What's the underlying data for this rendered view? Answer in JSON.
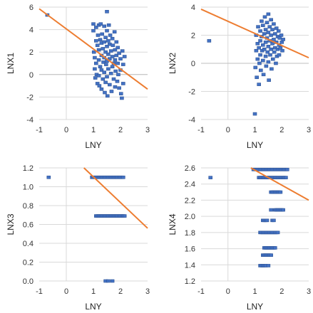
{
  "chart_data": [
    {
      "type": "scatter",
      "xlabel": "LNY",
      "ylabel": "LNX1",
      "xlim": [
        -1,
        3
      ],
      "ylim": [
        -4,
        6
      ],
      "xticks": [
        -1,
        0,
        1,
        2,
        3
      ],
      "yticks": [
        -4,
        -2,
        0,
        2,
        4,
        6
      ],
      "xtick_labels": [
        "-1",
        "0",
        "1",
        "2",
        "3"
      ],
      "ytick_labels": [
        "-4",
        "-2",
        "0",
        "2",
        "4",
        "6"
      ],
      "grid": true,
      "point_color": "#4472C4",
      "line_color": "#ED7D31",
      "points": [
        [
          -0.7,
          5.3
        ],
        [
          1.0,
          4.5
        ],
        [
          1.0,
          3.9
        ],
        [
          1.02,
          2.0
        ],
        [
          1.05,
          1.5
        ],
        [
          1.05,
          0.5
        ],
        [
          1.07,
          -0.3
        ],
        [
          1.1,
          4.2
        ],
        [
          1.1,
          3.0
        ],
        [
          1.1,
          1.0
        ],
        [
          1.12,
          0.0
        ],
        [
          1.15,
          -0.8
        ],
        [
          1.15,
          2.6
        ],
        [
          1.17,
          3.5
        ],
        [
          1.2,
          4.4
        ],
        [
          1.2,
          2.2
        ],
        [
          1.2,
          1.3
        ],
        [
          1.2,
          -0.1
        ],
        [
          1.22,
          -1.0
        ],
        [
          1.25,
          3.1
        ],
        [
          1.25,
          0.7
        ],
        [
          1.27,
          4.5
        ],
        [
          1.3,
          2.8
        ],
        [
          1.3,
          1.7
        ],
        [
          1.3,
          0.4
        ],
        [
          1.3,
          -1.3
        ],
        [
          1.32,
          3.6
        ],
        [
          1.35,
          2.3
        ],
        [
          1.35,
          -0.4
        ],
        [
          1.37,
          1.1
        ],
        [
          1.4,
          4.3
        ],
        [
          1.4,
          2.9
        ],
        [
          1.4,
          1.5
        ],
        [
          1.4,
          0.2
        ],
        [
          1.42,
          -1.6
        ],
        [
          1.45,
          3.3
        ],
        [
          1.45,
          2.0
        ],
        [
          1.45,
          -0.7
        ],
        [
          1.47,
          0.9
        ],
        [
          1.5,
          5.6
        ],
        [
          1.5,
          3.9
        ],
        [
          1.5,
          2.5
        ],
        [
          1.5,
          1.2
        ],
        [
          1.5,
          -0.2
        ],
        [
          1.52,
          -1.9
        ],
        [
          1.55,
          3.0
        ],
        [
          1.55,
          1.8
        ],
        [
          1.55,
          0.5
        ],
        [
          1.57,
          4.4
        ],
        [
          1.6,
          2.7
        ],
        [
          1.6,
          1.4
        ],
        [
          1.6,
          -0.9
        ],
        [
          1.62,
          3.5
        ],
        [
          1.65,
          2.1
        ],
        [
          1.65,
          0.1
        ],
        [
          1.67,
          -1.5
        ],
        [
          1.7,
          3.2
        ],
        [
          1.7,
          1.6
        ],
        [
          1.7,
          0.7
        ],
        [
          1.72,
          2.6
        ],
        [
          1.75,
          1.0
        ],
        [
          1.75,
          -0.4
        ],
        [
          1.78,
          3.8
        ],
        [
          1.8,
          2.2
        ],
        [
          1.8,
          1.3
        ],
        [
          1.8,
          -1.1
        ],
        [
          1.82,
          0.3
        ],
        [
          1.85,
          2.9
        ],
        [
          1.85,
          1.7
        ],
        [
          1.88,
          -0.6
        ],
        [
          1.9,
          2.4
        ],
        [
          1.9,
          1.0
        ],
        [
          1.92,
          0.0
        ],
        [
          1.95,
          1.9
        ],
        [
          1.95,
          -1.2
        ],
        [
          2.0,
          1.4
        ],
        [
          2.0,
          0.4
        ],
        [
          2.02,
          -1.7
        ],
        [
          2.05,
          -2.1
        ],
        [
          2.07,
          2.1
        ],
        [
          2.1,
          -0.8
        ],
        [
          2.1,
          0.9
        ],
        [
          2.15,
          1.6
        ]
      ],
      "trendline": [
        [
          -1,
          5.85
        ],
        [
          3,
          -1.3
        ]
      ]
    },
    {
      "type": "scatter",
      "xlabel": "LNY",
      "ylabel": "LNX2",
      "xlim": [
        -1,
        3
      ],
      "ylim": [
        -4,
        4
      ],
      "xticks": [
        -1,
        0,
        1,
        2,
        3
      ],
      "yticks": [
        -4,
        -2,
        0,
        2,
        4
      ],
      "xtick_labels": [
        "-1",
        "0",
        "1",
        "2",
        "3"
      ],
      "ytick_labels": [
        "-4",
        "-2",
        "0",
        "2",
        "4"
      ],
      "grid": true,
      "point_color": "#4472C4",
      "line_color": "#ED7D31",
      "points": [
        [
          -0.7,
          1.6
        ],
        [
          1.0,
          -3.6
        ],
        [
          1.02,
          -0.3
        ],
        [
          1.05,
          0.9
        ],
        [
          1.05,
          2.0
        ],
        [
          1.07,
          -1.0
        ],
        [
          1.1,
          1.4
        ],
        [
          1.1,
          0.3
        ],
        [
          1.12,
          2.6
        ],
        [
          1.15,
          -1.5
        ],
        [
          1.15,
          1.1
        ],
        [
          1.17,
          0.0
        ],
        [
          1.2,
          2.3
        ],
        [
          1.2,
          1.6
        ],
        [
          1.2,
          0.6
        ],
        [
          1.22,
          -0.5
        ],
        [
          1.25,
          3.0
        ],
        [
          1.25,
          1.9
        ],
        [
          1.27,
          0.9
        ],
        [
          1.3,
          2.7
        ],
        [
          1.3,
          1.3
        ],
        [
          1.3,
          0.2
        ],
        [
          1.32,
          -0.8
        ],
        [
          1.35,
          2.1
        ],
        [
          1.35,
          1.0
        ],
        [
          1.37,
          3.3
        ],
        [
          1.4,
          2.4
        ],
        [
          1.4,
          1.5
        ],
        [
          1.4,
          0.5
        ],
        [
          1.42,
          -0.2
        ],
        [
          1.45,
          2.9
        ],
        [
          1.45,
          1.8
        ],
        [
          1.47,
          0.8
        ],
        [
          1.5,
          3.5
        ],
        [
          1.5,
          2.2
        ],
        [
          1.5,
          1.2
        ],
        [
          1.5,
          0.1
        ],
        [
          1.52,
          -1.2
        ],
        [
          1.55,
          2.6
        ],
        [
          1.55,
          1.6
        ],
        [
          1.57,
          0.6
        ],
        [
          1.6,
          3.1
        ],
        [
          1.6,
          2.0
        ],
        [
          1.6,
          1.0
        ],
        [
          1.62,
          -0.4
        ],
        [
          1.65,
          2.4
        ],
        [
          1.65,
          1.4
        ],
        [
          1.67,
          0.3
        ],
        [
          1.7,
          2.8
        ],
        [
          1.7,
          1.7
        ],
        [
          1.72,
          0.8
        ],
        [
          1.75,
          2.1
        ],
        [
          1.75,
          1.1
        ],
        [
          1.78,
          0.0
        ],
        [
          1.8,
          2.5
        ],
        [
          1.8,
          1.5
        ],
        [
          1.82,
          0.5
        ],
        [
          1.85,
          1.9
        ],
        [
          1.85,
          1.0
        ],
        [
          1.88,
          2.3
        ],
        [
          1.9,
          1.3
        ],
        [
          1.9,
          0.6
        ],
        [
          1.92,
          1.8
        ],
        [
          1.95,
          1.1
        ],
        [
          1.98,
          2.0
        ],
        [
          2.0,
          1.5
        ],
        [
          2.02,
          0.9
        ],
        [
          2.05,
          1.7
        ]
      ],
      "trendline": [
        [
          -1,
          3.85
        ],
        [
          3,
          0.4
        ]
      ]
    },
    {
      "type": "scatter",
      "xlabel": "LNY",
      "ylabel": "LNX3",
      "xlim": [
        -1,
        3
      ],
      "ylim": [
        0,
        1.2
      ],
      "xticks": [
        -1,
        0,
        1,
        2,
        3
      ],
      "yticks": [
        0,
        0.2,
        0.4,
        0.6,
        0.8,
        1.0,
        1.2
      ],
      "xtick_labels": [
        "-1",
        "0",
        "1",
        "2",
        "3"
      ],
      "ytick_labels": [
        "0.0",
        "0.2",
        "0.4",
        "0.6",
        "0.8",
        "1.0",
        "1.2"
      ],
      "grid": true,
      "point_color": "#4472C4",
      "line_color": "#ED7D31",
      "points": [
        [
          -0.65,
          1.1
        ],
        [
          0.95,
          1.1
        ],
        [
          1.0,
          1.1
        ],
        [
          1.05,
          1.1
        ],
        [
          1.1,
          1.1
        ],
        [
          1.15,
          1.1
        ],
        [
          1.2,
          1.1
        ],
        [
          1.25,
          1.1
        ],
        [
          1.3,
          1.1
        ],
        [
          1.35,
          1.1
        ],
        [
          1.4,
          1.1
        ],
        [
          1.45,
          1.1
        ],
        [
          1.5,
          1.1
        ],
        [
          1.55,
          1.1
        ],
        [
          1.6,
          1.1
        ],
        [
          1.65,
          1.1
        ],
        [
          1.7,
          1.1
        ],
        [
          1.75,
          1.1
        ],
        [
          1.8,
          1.1
        ],
        [
          1.85,
          1.1
        ],
        [
          1.9,
          1.1
        ],
        [
          1.95,
          1.1
        ],
        [
          2.0,
          1.1
        ],
        [
          2.05,
          1.1
        ],
        [
          2.1,
          1.1
        ],
        [
          1.1,
          0.69
        ],
        [
          1.15,
          0.69
        ],
        [
          1.2,
          0.69
        ],
        [
          1.25,
          0.69
        ],
        [
          1.3,
          0.69
        ],
        [
          1.35,
          0.69
        ],
        [
          1.4,
          0.69
        ],
        [
          1.45,
          0.69
        ],
        [
          1.5,
          0.69
        ],
        [
          1.55,
          0.69
        ],
        [
          1.6,
          0.69
        ],
        [
          1.65,
          0.69
        ],
        [
          1.7,
          0.69
        ],
        [
          1.75,
          0.69
        ],
        [
          1.8,
          0.69
        ],
        [
          1.85,
          0.69
        ],
        [
          1.9,
          0.69
        ],
        [
          1.95,
          0.69
        ],
        [
          2.0,
          0.69
        ],
        [
          2.05,
          0.69
        ],
        [
          2.1,
          0.69
        ],
        [
          2.15,
          0.69
        ],
        [
          1.45,
          0.0
        ],
        [
          1.55,
          0.0
        ],
        [
          1.7,
          0.0
        ]
      ],
      "trendline": [
        [
          0.65,
          1.2
        ],
        [
          3,
          0.56
        ]
      ]
    },
    {
      "type": "scatter",
      "xlabel": "LNY",
      "ylabel": "LNX4",
      "xlim": [
        -1,
        3
      ],
      "ylim": [
        1.2,
        2.6
      ],
      "xticks": [
        -1,
        0,
        1,
        2,
        3
      ],
      "yticks": [
        1.2,
        1.4,
        1.6,
        1.8,
        2.0,
        2.2,
        2.4,
        2.6
      ],
      "xtick_labels": [
        "-1",
        "0",
        "1",
        "2",
        "3"
      ],
      "ytick_labels": [
        "1.2",
        "1.4",
        "1.6",
        "1.8",
        "2.0",
        "2.2",
        "2.4",
        "2.6"
      ],
      "grid": true,
      "point_color": "#4472C4",
      "line_color": "#ED7D31",
      "points": [
        [
          -0.65,
          2.48
        ],
        [
          0.95,
          2.58
        ],
        [
          1.0,
          2.58
        ],
        [
          1.05,
          2.58
        ],
        [
          1.1,
          2.58
        ],
        [
          1.15,
          2.58
        ],
        [
          1.2,
          2.58
        ],
        [
          1.25,
          2.58
        ],
        [
          1.3,
          2.58
        ],
        [
          1.35,
          2.58
        ],
        [
          1.4,
          2.58
        ],
        [
          1.45,
          2.58
        ],
        [
          1.5,
          2.58
        ],
        [
          1.55,
          2.58
        ],
        [
          1.6,
          2.58
        ],
        [
          1.65,
          2.58
        ],
        [
          1.7,
          2.58
        ],
        [
          1.75,
          2.58
        ],
        [
          1.8,
          2.58
        ],
        [
          1.85,
          2.58
        ],
        [
          1.9,
          2.58
        ],
        [
          1.95,
          2.58
        ],
        [
          2.0,
          2.58
        ],
        [
          2.05,
          2.58
        ],
        [
          2.1,
          2.58
        ],
        [
          2.15,
          2.58
        ],
        [
          2.2,
          2.58
        ],
        [
          1.15,
          2.48
        ],
        [
          1.2,
          2.48
        ],
        [
          1.25,
          2.48
        ],
        [
          1.3,
          2.48
        ],
        [
          1.35,
          2.48
        ],
        [
          1.4,
          2.48
        ],
        [
          1.45,
          2.48
        ],
        [
          1.5,
          2.48
        ],
        [
          1.55,
          2.48
        ],
        [
          1.6,
          2.48
        ],
        [
          1.65,
          2.48
        ],
        [
          1.7,
          2.48
        ],
        [
          1.75,
          2.48
        ],
        [
          1.8,
          2.48
        ],
        [
          1.85,
          2.48
        ],
        [
          1.9,
          2.48
        ],
        [
          1.95,
          2.48
        ],
        [
          2.0,
          2.48
        ],
        [
          2.05,
          2.48
        ],
        [
          2.1,
          2.48
        ],
        [
          2.15,
          2.48
        ],
        [
          1.6,
          2.3
        ],
        [
          1.65,
          2.3
        ],
        [
          1.7,
          2.3
        ],
        [
          1.75,
          2.3
        ],
        [
          1.8,
          2.3
        ],
        [
          1.85,
          2.3
        ],
        [
          1.9,
          2.3
        ],
        [
          1.95,
          2.3
        ],
        [
          1.75,
          2.08
        ],
        [
          1.8,
          2.08
        ],
        [
          1.85,
          2.08
        ],
        [
          1.9,
          2.08
        ],
        [
          1.95,
          2.08
        ],
        [
          2.0,
          2.08
        ],
        [
          2.05,
          2.08
        ],
        [
          1.6,
          2.08
        ],
        [
          1.3,
          1.95
        ],
        [
          1.35,
          1.95
        ],
        [
          1.4,
          1.95
        ],
        [
          1.45,
          1.95
        ],
        [
          1.65,
          1.95
        ],
        [
          1.7,
          1.95
        ],
        [
          1.2,
          1.8
        ],
        [
          1.25,
          1.8
        ],
        [
          1.3,
          1.8
        ],
        [
          1.35,
          1.8
        ],
        [
          1.4,
          1.8
        ],
        [
          1.45,
          1.8
        ],
        [
          1.5,
          1.8
        ],
        [
          1.55,
          1.8
        ],
        [
          1.6,
          1.8
        ],
        [
          1.65,
          1.8
        ],
        [
          1.7,
          1.8
        ],
        [
          1.75,
          1.8
        ],
        [
          1.8,
          1.8
        ],
        [
          1.85,
          1.8
        ],
        [
          1.35,
          1.61
        ],
        [
          1.4,
          1.61
        ],
        [
          1.45,
          1.61
        ],
        [
          1.5,
          1.61
        ],
        [
          1.55,
          1.61
        ],
        [
          1.6,
          1.61
        ],
        [
          1.65,
          1.61
        ],
        [
          1.7,
          1.61
        ],
        [
          1.75,
          1.61
        ],
        [
          1.3,
          1.52
        ],
        [
          1.35,
          1.52
        ],
        [
          1.4,
          1.52
        ],
        [
          1.45,
          1.52
        ],
        [
          1.5,
          1.52
        ],
        [
          1.55,
          1.52
        ],
        [
          1.6,
          1.52
        ],
        [
          1.2,
          1.39
        ],
        [
          1.25,
          1.39
        ],
        [
          1.3,
          1.39
        ],
        [
          1.35,
          1.39
        ],
        [
          1.4,
          1.39
        ],
        [
          1.5,
          1.39
        ]
      ],
      "trendline": [
        [
          0.85,
          2.6
        ],
        [
          3,
          2.2
        ]
      ]
    }
  ]
}
